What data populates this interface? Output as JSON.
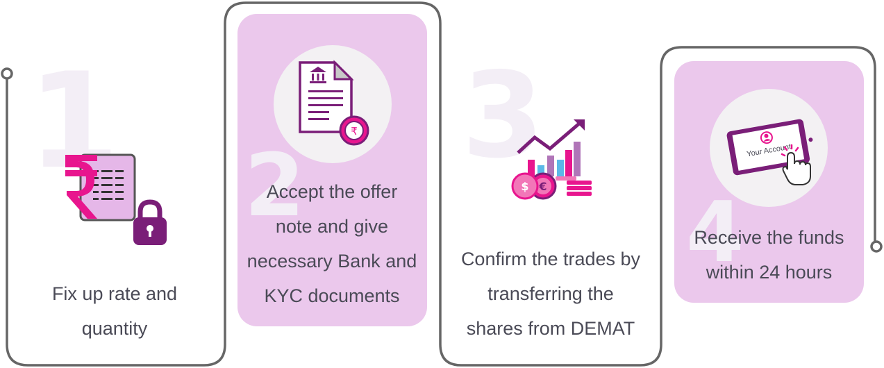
{
  "steps": [
    {
      "number": "1",
      "lines": [
        "Fix up rate and",
        "quantity"
      ],
      "icon": "rupee-lock-icon"
    },
    {
      "number": "2",
      "lines": [
        "Accept the offer",
        "note and give",
        "necessary Bank and",
        "KYC documents"
      ],
      "icon": "bank-document-icon"
    },
    {
      "number": "3",
      "lines": [
        "Confirm the trades by",
        "transferring the",
        "shares from DEMAT"
      ],
      "icon": "growth-chart-coins-icon"
    },
    {
      "number": "4",
      "lines": [
        "Receive the funds",
        "within 24 hours"
      ],
      "icon": "tablet-account-icon",
      "screen_label": "Your Account"
    }
  ],
  "colors": {
    "card": "#ebc8ec",
    "line": "#666666",
    "magenta": "#e8158e",
    "purple": "#7a1e78",
    "text": "#4a4a56",
    "number_watermark": "#f3eef6"
  }
}
